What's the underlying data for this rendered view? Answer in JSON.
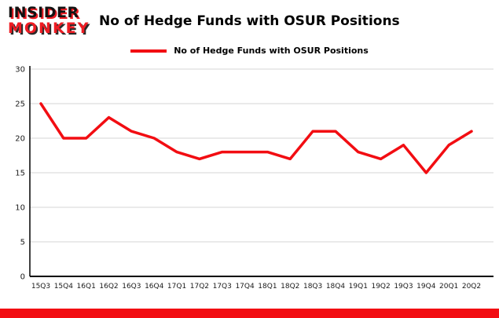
{
  "brand": {
    "line1": "INSIDER",
    "line2": "MONKEY"
  },
  "header": {
    "title": "No of Hedge Funds with OSUR Positions"
  },
  "legend": {
    "label": "No of Hedge Funds with OSUR Positions"
  },
  "colors": {
    "accent_red": "#f20d12",
    "grid": "#d4d4d4",
    "axis": "#000000",
    "tick_text": "#1a1a1a"
  },
  "chart_data": {
    "type": "line",
    "title": "No of Hedge Funds with OSUR Positions",
    "categories": [
      "15Q3",
      "15Q4",
      "16Q1",
      "16Q2",
      "16Q3",
      "16Q4",
      "17Q1",
      "17Q2",
      "17Q3",
      "17Q4",
      "18Q1",
      "18Q2",
      "18Q3",
      "18Q4",
      "19Q1",
      "19Q2",
      "19Q3",
      "19Q4",
      "20Q1",
      "20Q2"
    ],
    "values": [
      25,
      20,
      20,
      23,
      21,
      20,
      18,
      17,
      18,
      18,
      18,
      17,
      21,
      21,
      18,
      17,
      19,
      15,
      19,
      21
    ],
    "xlabel": "",
    "ylabel": "",
    "ylim": [
      0,
      30
    ],
    "yticks": [
      0,
      5,
      10,
      15,
      20,
      25,
      30
    ],
    "grid": true,
    "legend_position": "top-center",
    "line_color": "#f20d12"
  }
}
